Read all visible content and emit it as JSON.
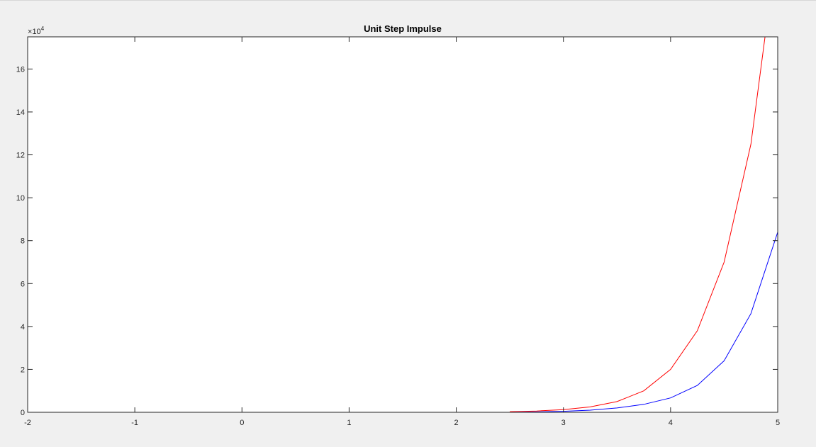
{
  "chart_data": {
    "type": "line",
    "title": "Unit Step Impulse",
    "xlabel": "",
    "ylabel": "",
    "xlim": [
      -2,
      5
    ],
    "ylim": [
      0,
      175000
    ],
    "x_ticks": [
      -2,
      -1,
      0,
      1,
      2,
      3,
      4,
      5
    ],
    "x_tick_labels": [
      "-2",
      "-1",
      "0",
      "1",
      "2",
      "3",
      "4",
      "5"
    ],
    "y_ticks": [
      0,
      20000,
      40000,
      60000,
      80000,
      100000,
      120000,
      140000,
      160000
    ],
    "y_tick_labels": [
      "0",
      "2",
      "4",
      "6",
      "8",
      "10",
      "12",
      "14",
      "16"
    ],
    "y_exponent": {
      "base": "10",
      "power": "4",
      "prefix": "×"
    },
    "grid": false,
    "colors": {
      "red": "#ff0000",
      "blue": "#0000ff",
      "axis": "#262626"
    },
    "series": [
      {
        "color": "#ff0000",
        "x": [
          2.5,
          2.75,
          3.0,
          3.25,
          3.5,
          3.75,
          4.0,
          4.25,
          4.5,
          4.75,
          5.0
        ],
        "values": [
          290,
          600,
          1250,
          2500,
          5000,
          10000,
          20000,
          38000,
          70000,
          125000,
          220000
        ]
      },
      {
        "color": "#0000ff",
        "x": [
          -2.0,
          2.5,
          2.75,
          3.0,
          3.25,
          3.5,
          3.75,
          4.0,
          4.25,
          4.5,
          4.75,
          5.0
        ],
        "values": [
          0,
          0,
          160,
          450,
          1000,
          2000,
          3700,
          6700,
          12500,
          24000,
          46000,
          84000
        ]
      }
    ]
  }
}
